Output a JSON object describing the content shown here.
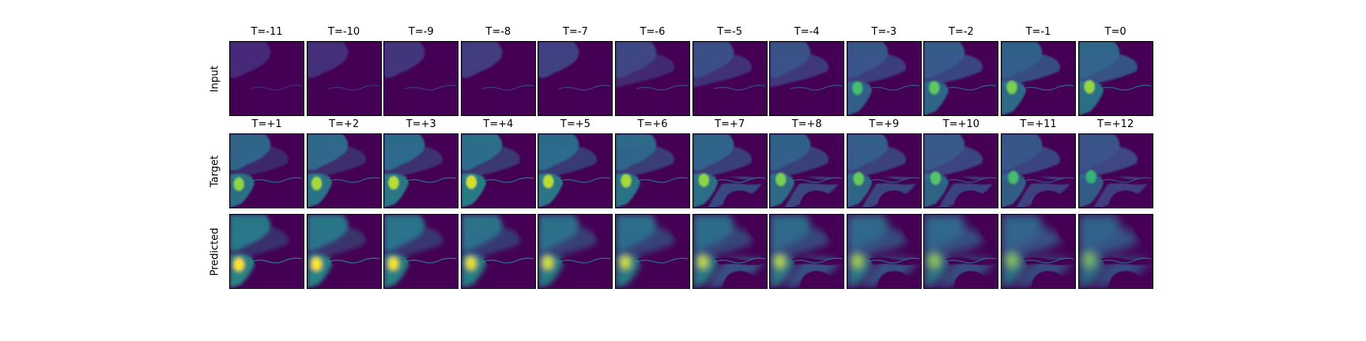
{
  "chart_data": {
    "type": "heatmap",
    "colormap": "viridis",
    "axes_visible": false,
    "rows": [
      {
        "label": "Input",
        "panels": [
          "T=-11",
          "T=-10",
          "T=-9",
          "T=-8",
          "T=-7",
          "T=-6",
          "T=-5",
          "T=-4",
          "T=-3",
          "T=-2",
          "T=-1",
          "T=0"
        ]
      },
      {
        "label": "Target",
        "panels": [
          "T=+1",
          "T=+2",
          "T=+3",
          "T=+4",
          "T=+5",
          "T=+6",
          "T=+7",
          "T=+8",
          "T=+9",
          "T=+10",
          "T=+11",
          "T=+12"
        ]
      },
      {
        "label": "Predicted",
        "panels": [
          "",
          "",
          "",
          "",
          "",
          "",
          "",
          "",
          "",
          "",
          "",
          ""
        ]
      }
    ]
  }
}
